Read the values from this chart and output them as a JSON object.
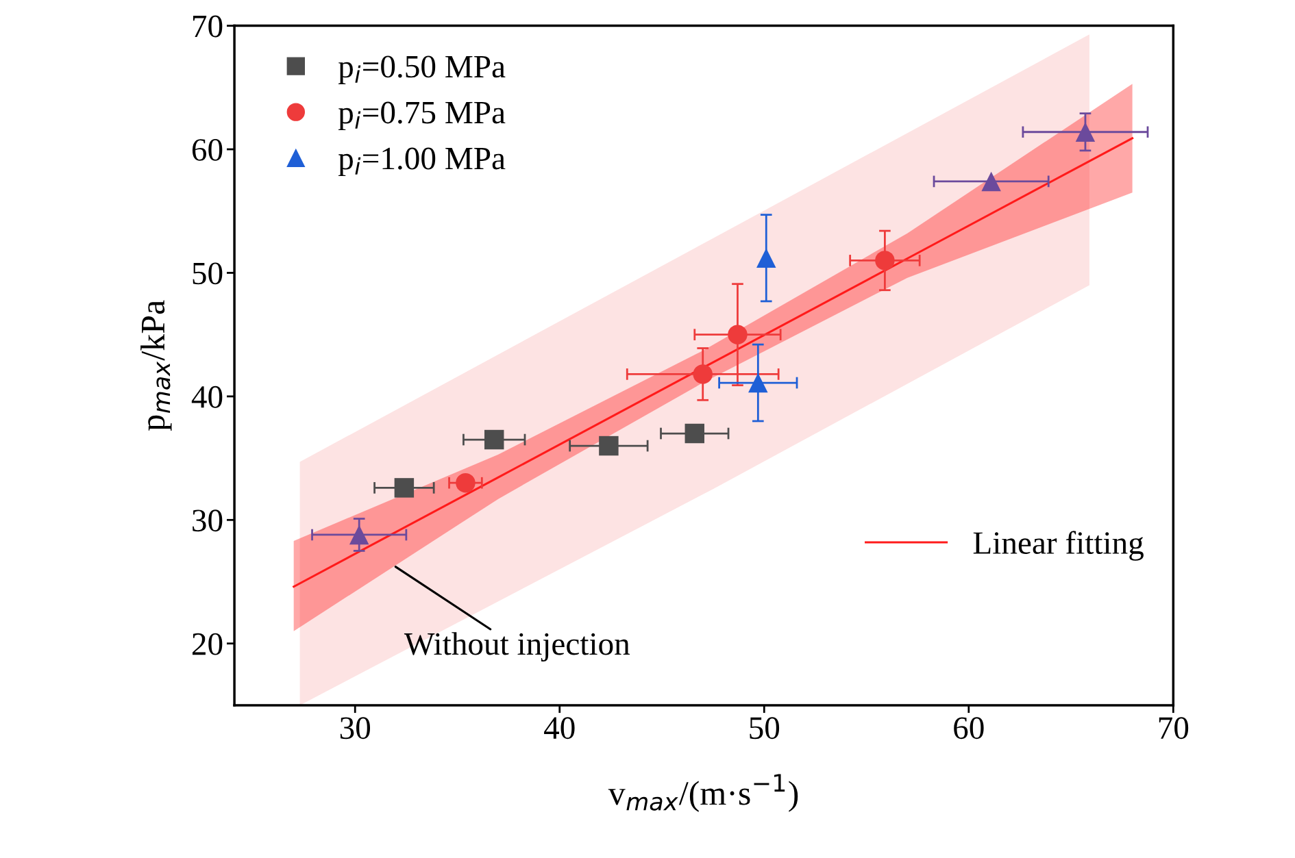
{
  "chart_data": {
    "type": "scatter",
    "xlabel": "v$_{max}$/(m·s$^{−1}$)",
    "ylabel": "p$_{max}$/kPa",
    "xlim": [
      24.1,
      70
    ],
    "ylim": [
      15,
      70
    ],
    "xticks": [
      30,
      40,
      50,
      60,
      70
    ],
    "yticks": [
      20,
      30,
      40,
      50,
      60,
      70
    ],
    "grid": false,
    "legend": "top left",
    "series": [
      {
        "name": "p$_{i}$=0.50 MPa",
        "marker": "square",
        "color": "#4d4d4d",
        "x": [
          32.4,
          36.8,
          42.4,
          46.6
        ],
        "values": [
          32.6,
          36.5,
          36.0,
          37.0
        ],
        "xerrors": [
          1.45,
          1.5,
          1.9,
          1.65
        ],
        "errors": [
          null,
          null,
          null,
          null
        ]
      },
      {
        "name": "p$_{i}$=0.75 MPa",
        "marker": "circle",
        "color": "#ee3b3b",
        "x": [
          35.4,
          47.0,
          48.7,
          55.9
        ],
        "values": [
          33.0,
          41.8,
          45.0,
          51.0
        ],
        "xerrors": [
          0.8,
          3.7,
          2.1,
          1.7
        ],
        "errors": [
          null,
          2.1,
          4.1,
          2.4
        ]
      },
      {
        "name": "p$_{i}$=1.00 MPa",
        "marker": "triangle",
        "color": "#1f5fd6",
        "colors": [
          "#6b4a9c",
          "#1f5fd6",
          "#1f5fd6",
          "#6b4a9c",
          "#6b4a9c"
        ],
        "x": [
          30.2,
          49.7,
          50.1,
          61.1,
          65.7
        ],
        "values": [
          28.8,
          41.1,
          51.2,
          57.4,
          61.4
        ],
        "xerrors": [
          2.3,
          1.9,
          null,
          2.8,
          3.05
        ],
        "errors": [
          1.3,
          3.1,
          3.5,
          null,
          1.5
        ]
      },
      {
        "type": "area",
        "color": "#fde3e3",
        "x": [
          27.3,
          47.5,
          65.9
        ],
        "values": [
          34.7,
          52.8,
          69.3
        ]
      },
      {
        "type": "area",
        "color": "#ffffff",
        "x": [
          27.3,
          47.5,
          65.9
        ],
        "values": [
          15.0,
          32.5,
          49.0
        ]
      },
      {
        "name": "Linear fitting",
        "type": "line",
        "line_style": "solid",
        "color": "#ff1a1a",
        "x": [
          27,
          37,
          47,
          57,
          68
        ],
        "values": [
          24.6,
          33.45,
          42.31,
          51.16,
          60.9
        ],
        "lower": [
          21.0,
          31.7,
          41.1,
          49.6,
          56.5
        ],
        "upper": [
          28.3,
          35.3,
          43.7,
          53.2,
          65.3
        ]
      }
    ],
    "annotations": [
      {
        "text": "Without injection",
        "x": 31.9,
        "y": 26.3
      }
    ]
  }
}
